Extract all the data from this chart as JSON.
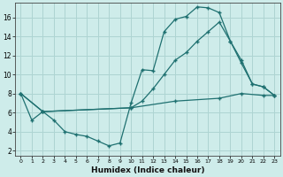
{
  "xlabel": "Humidex (Indice chaleur)",
  "background_color": "#ceecea",
  "grid_color": "#aed4d2",
  "line_color": "#1e7070",
  "xlim": [
    -0.5,
    23.5
  ],
  "ylim": [
    1.5,
    17.5
  ],
  "yticks": [
    2,
    4,
    6,
    8,
    10,
    12,
    14,
    16
  ],
  "xticks": [
    0,
    1,
    2,
    3,
    4,
    5,
    6,
    7,
    8,
    9,
    10,
    11,
    12,
    13,
    14,
    15,
    16,
    17,
    18,
    19,
    20,
    21,
    22,
    23
  ],
  "series1_x": [
    0,
    1,
    2,
    3,
    4,
    5,
    6,
    7,
    8,
    9,
    10,
    11,
    12,
    13,
    14,
    15,
    16,
    17,
    18,
    19,
    20,
    21,
    22,
    23
  ],
  "series1_y": [
    8.0,
    5.2,
    6.1,
    5.2,
    4.0,
    3.7,
    3.5,
    3.0,
    2.5,
    2.8,
    7.0,
    10.5,
    10.4,
    14.5,
    15.8,
    16.1,
    17.1,
    17.0,
    16.5,
    13.5,
    11.2,
    9.0,
    8.7,
    7.8
  ],
  "series2_x": [
    0,
    2,
    10,
    11,
    12,
    13,
    14,
    15,
    16,
    17,
    18,
    19,
    20,
    21,
    22,
    23
  ],
  "series2_y": [
    8.0,
    6.1,
    6.5,
    7.2,
    8.5,
    10.0,
    11.5,
    12.3,
    13.5,
    14.5,
    15.5,
    13.5,
    11.5,
    9.0,
    8.7,
    7.8
  ],
  "series3_x": [
    0,
    2,
    10,
    14,
    18,
    20,
    22,
    23
  ],
  "series3_y": [
    8.0,
    6.1,
    6.5,
    7.2,
    7.5,
    8.0,
    7.8,
    7.8
  ]
}
